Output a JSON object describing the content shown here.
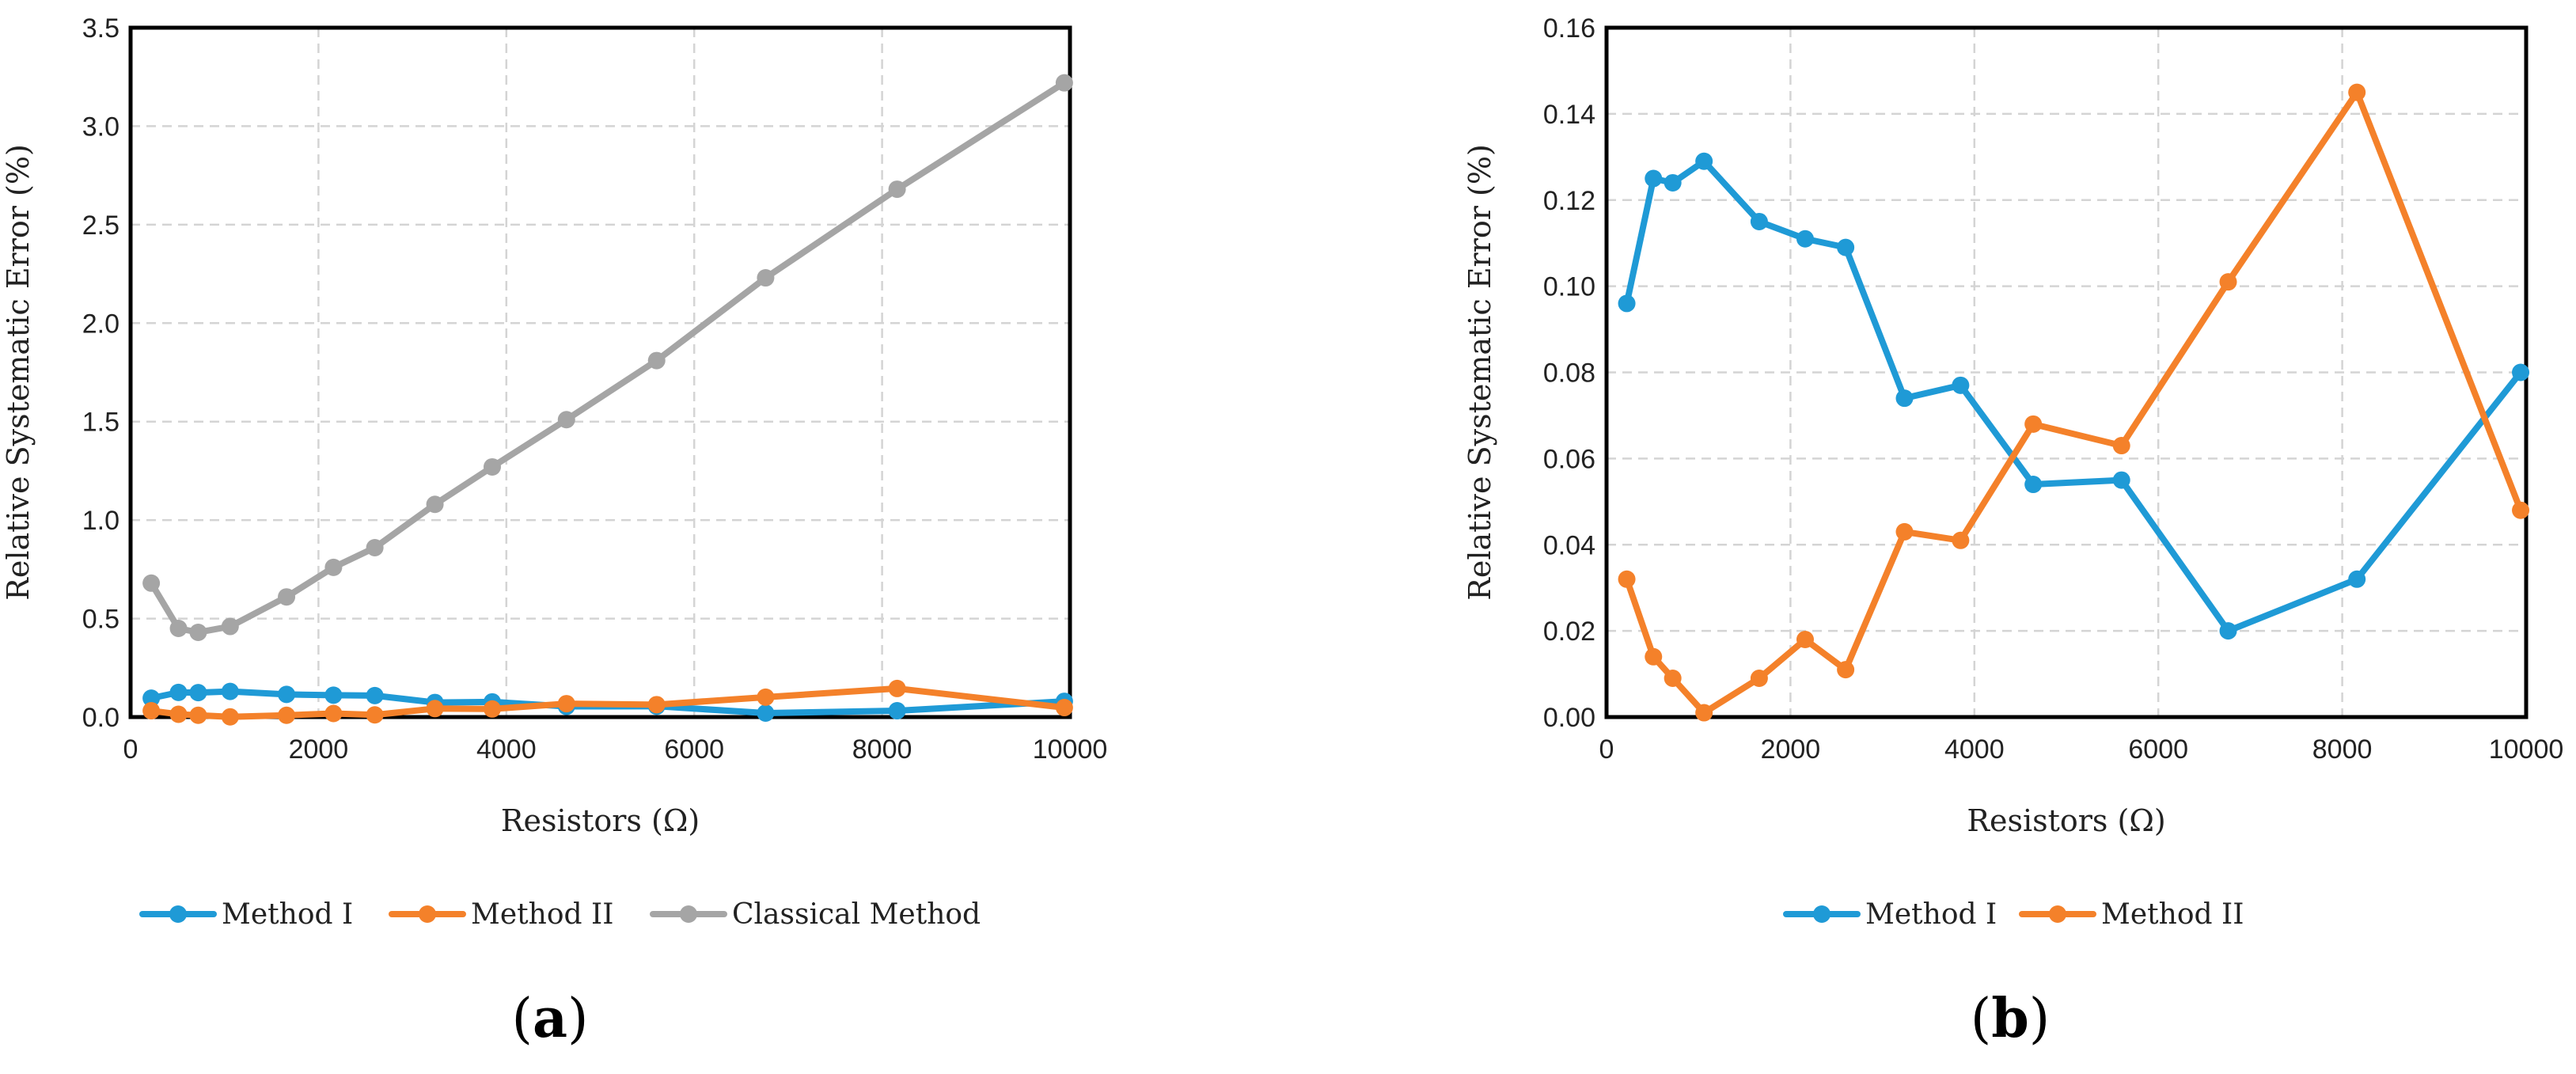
{
  "chart_data": [
    {
      "type": "line",
      "panel_label": "a",
      "xlabel": "Resistors (Ω)",
      "ylabel": "Relative Systematic Error (%)",
      "xlim": [
        0,
        10000
      ],
      "ylim": [
        0,
        3.5
      ],
      "x_ticks": [
        0,
        2000,
        4000,
        6000,
        8000,
        10000
      ],
      "y_ticks": [
        0.0,
        0.5,
        1.0,
        1.5,
        2.0,
        2.5,
        3.0,
        3.5
      ],
      "x_tick_labels": [
        "0",
        "2000",
        "4000",
        "6000",
        "8000",
        "10000"
      ],
      "y_tick_labels": [
        "0.0",
        "0.5",
        "1.0",
        "1.5",
        "2.0",
        "2.5",
        "3.0",
        "3.5"
      ],
      "grid": true,
      "legend_position": "bottom",
      "x": [
        220,
        510,
        720,
        1060,
        1660,
        2160,
        2600,
        3240,
        3850,
        4640,
        5600,
        6760,
        8160,
        9940
      ],
      "series": [
        {
          "name": "Method I",
          "color": "#1f9ad6",
          "values": [
            0.096,
            0.125,
            0.124,
            0.13,
            0.115,
            0.111,
            0.109,
            0.074,
            0.077,
            0.054,
            0.055,
            0.02,
            0.032,
            0.08
          ]
        },
        {
          "name": "Method II",
          "color": "#f4812a",
          "values": [
            0.032,
            0.014,
            0.009,
            0.001,
            0.009,
            0.018,
            0.011,
            0.043,
            0.041,
            0.068,
            0.063,
            0.101,
            0.145,
            0.048
          ]
        },
        {
          "name": "Classical Method",
          "color": "#a5a5a5",
          "values": [
            0.68,
            0.45,
            0.43,
            0.46,
            0.61,
            0.76,
            0.86,
            1.08,
            1.27,
            1.51,
            1.81,
            2.23,
            2.68,
            3.22
          ]
        }
      ]
    },
    {
      "type": "line",
      "panel_label": "b",
      "xlabel": "Resistors (Ω)",
      "ylabel": "Relative Systematic Error (%)",
      "xlim": [
        0,
        10000
      ],
      "ylim": [
        0,
        0.16
      ],
      "x_ticks": [
        0,
        2000,
        4000,
        6000,
        8000,
        10000
      ],
      "y_ticks": [
        0.0,
        0.02,
        0.04,
        0.06,
        0.08,
        0.1,
        0.12,
        0.14,
        0.16
      ],
      "x_tick_labels": [
        "0",
        "2000",
        "4000",
        "6000",
        "8000",
        "10000"
      ],
      "y_tick_labels": [
        "0.00",
        "0.02",
        "0.04",
        "0.06",
        "0.08",
        "0.10",
        "0.12",
        "0.14",
        "0.16"
      ],
      "grid": true,
      "legend_position": "bottom",
      "x": [
        220,
        510,
        720,
        1060,
        1660,
        2160,
        2600,
        3240,
        3850,
        4640,
        5600,
        6760,
        8160,
        9940
      ],
      "series": [
        {
          "name": "Method I",
          "color": "#1f9ad6",
          "values": [
            0.096,
            0.125,
            0.124,
            0.129,
            0.115,
            0.111,
            0.109,
            0.074,
            0.077,
            0.054,
            0.055,
            0.02,
            0.032,
            0.08
          ]
        },
        {
          "name": "Method II",
          "color": "#f4812a",
          "values": [
            0.032,
            0.014,
            0.009,
            0.001,
            0.009,
            0.018,
            0.011,
            0.043,
            0.041,
            0.068,
            0.063,
            0.101,
            0.145,
            0.048
          ]
        }
      ]
    }
  ]
}
